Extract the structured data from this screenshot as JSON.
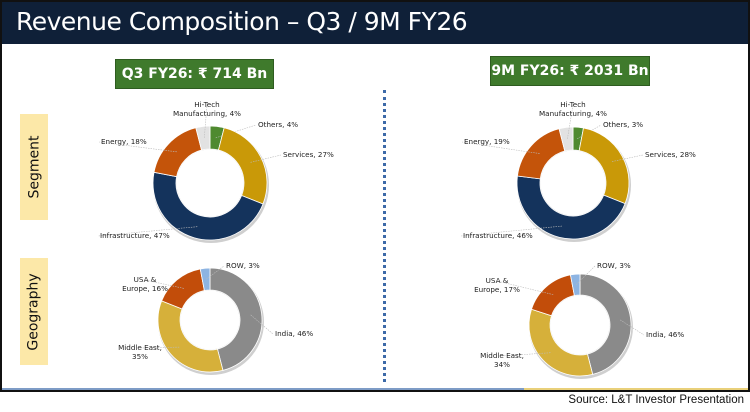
{
  "header": {
    "title": "Revenue Composition – Q3 / 9M FY26"
  },
  "side_labels": {
    "segment": "Segment",
    "geography": "Geography"
  },
  "periods": [
    {
      "label": "Q3 FY26: ₹ 714 Bn"
    },
    {
      "label": "9M FY26: ₹ 2031 Bn"
    }
  ],
  "source": "Source: L&T Investor Presentation",
  "chart_data": [
    {
      "type": "pie",
      "donut": true,
      "panel": "Q3 FY26",
      "group": "Segment",
      "categories": [
        "Others",
        "Services",
        "Infrastructure",
        "Energy",
        "Hi-Tech Manufacturing"
      ],
      "labels": [
        [
          "Others, 4%"
        ],
        [
          "Services, 27%"
        ],
        [
          "Infrastructure, 47%"
        ],
        [
          "Energy, 18%"
        ],
        [
          "Hi-Tech",
          "Manufacturing, 4%"
        ]
      ],
      "values": [
        4,
        27,
        47,
        18,
        4
      ],
      "colors": [
        "#4f8a30",
        "#c99908",
        "#14335c",
        "#c4540a",
        "#e2e2e2"
      ]
    },
    {
      "type": "pie",
      "donut": true,
      "panel": "9M FY26",
      "group": "Segment",
      "categories": [
        "Others",
        "Services",
        "Infrastructure",
        "Energy",
        "Hi-Tech Manufacturing"
      ],
      "labels": [
        [
          "Others, 3%"
        ],
        [
          "Services, 28%"
        ],
        [
          "Infrastructure, 46%"
        ],
        [
          "Energy, 19%"
        ],
        [
          "Hi-Tech",
          "Manufacturing, 4%"
        ]
      ],
      "values": [
        3,
        28,
        46,
        19,
        4
      ],
      "colors": [
        "#4f8a30",
        "#c99908",
        "#14335c",
        "#c4540a",
        "#e2e2e2"
      ]
    },
    {
      "type": "pie",
      "donut": true,
      "panel": "Q3 FY26",
      "group": "Geography",
      "categories": [
        "India",
        "Middle East",
        "USA & Europe",
        "ROW"
      ],
      "labels": [
        [
          "India, 46%"
        ],
        [
          "Middle East,",
          "35%"
        ],
        [
          "USA &",
          "Europe, 16%"
        ],
        [
          "ROW, 3%"
        ]
      ],
      "values": [
        46,
        35,
        16,
        3
      ],
      "colors": [
        "#8a8a8a",
        "#d6b03a",
        "#c24d0a",
        "#8db4e2"
      ]
    },
    {
      "type": "pie",
      "donut": true,
      "panel": "9M FY26",
      "group": "Geography",
      "categories": [
        "India",
        "Middle East",
        "USA & Europe",
        "ROW"
      ],
      "labels": [
        [
          "India, 46%"
        ],
        [
          "Middle East,",
          "34%"
        ],
        [
          "USA &",
          "Europe, 17%"
        ],
        [
          "ROW, 3%"
        ]
      ],
      "values": [
        46,
        34,
        17,
        3
      ],
      "colors": [
        "#8a8a8a",
        "#d6b03a",
        "#c24d0a",
        "#8db4e2"
      ]
    }
  ]
}
